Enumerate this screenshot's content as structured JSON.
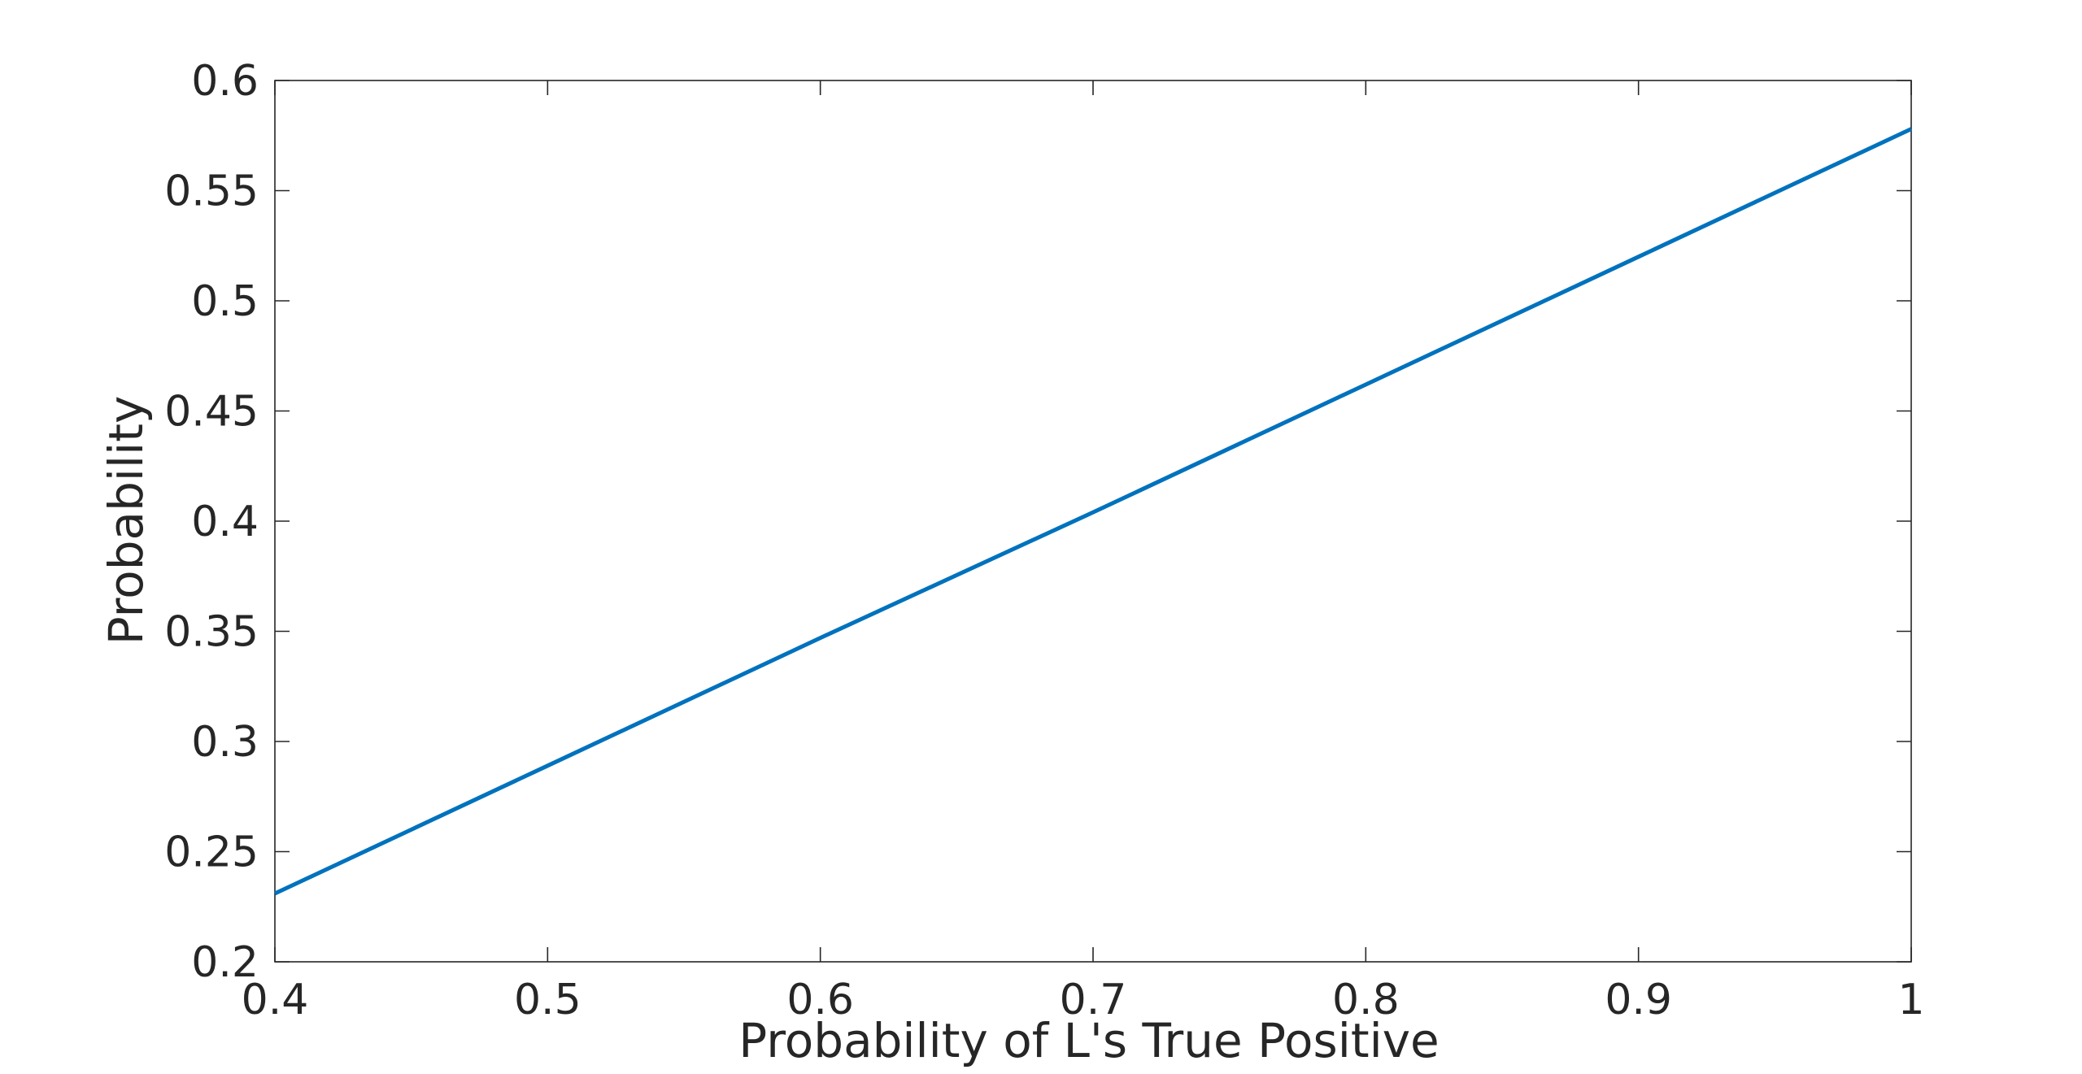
{
  "chart_data": {
    "type": "line",
    "title": "",
    "xlabel": "Probability of L's True Positive",
    "ylabel": "Probability",
    "xlim": [
      0.4,
      1
    ],
    "ylim": [
      0.2,
      0.6
    ],
    "xticks": [
      0.4,
      0.5,
      0.6,
      0.7,
      0.8,
      0.9,
      1
    ],
    "yticks": [
      0.2,
      0.25,
      0.3,
      0.35,
      0.4,
      0.45,
      0.5,
      0.55,
      0.6
    ],
    "xtick_labels": [
      "0.4",
      "0.5",
      "0.6",
      "0.7",
      "0.8",
      "0.9",
      "1"
    ],
    "ytick_labels": [
      "0.2",
      "0.25",
      "0.3",
      "0.35",
      "0.4",
      "0.45",
      "0.5",
      "0.55",
      "0.6"
    ],
    "grid": false,
    "box": true,
    "colors": {
      "line": "#0072BD",
      "axis": "#262626"
    },
    "series": [
      {
        "x": [
          0.4,
          0.5,
          0.6,
          0.7,
          0.8,
          0.9,
          1.0
        ],
        "y": [
          0.231,
          0.289,
          0.347,
          0.404,
          0.462,
          0.52,
          0.578
        ]
      }
    ]
  }
}
